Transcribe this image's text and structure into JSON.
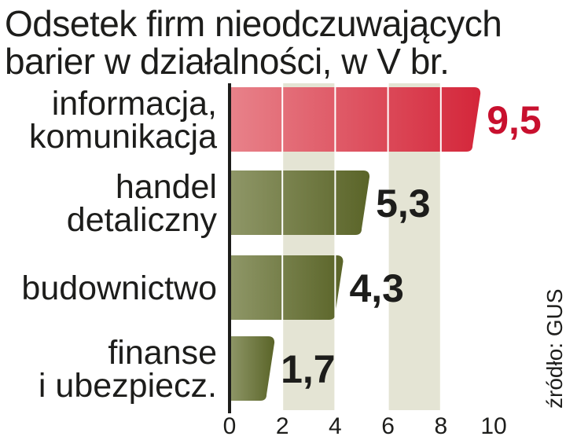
{
  "title_line1": "Odsetek firm nieodczuwających",
  "title_line2": "barier w działalności, w V br.",
  "source": "źródło: GUS",
  "colors": {
    "highlight": "#d4263a",
    "highlight_light": "#e8828a",
    "bar": "#5a6428",
    "bar_light": "#8f9768",
    "band": "#e4e4d4",
    "value_highlight": "#c8102e",
    "value_default": "#1d1d1b"
  },
  "chart_data": {
    "type": "bar",
    "orientation": "horizontal",
    "title": "Odsetek firm nieodczuwających barier w działalności, w V br.",
    "categories": [
      [
        "informacja,",
        "komunikacja"
      ],
      [
        "handel",
        "detaliczny"
      ],
      [
        "budownictwo"
      ],
      [
        "finanse",
        "i ubezpiecz."
      ]
    ],
    "values": [
      9.5,
      5.3,
      4.3,
      1.7
    ],
    "value_labels": [
      "9,5",
      "5,3",
      "4,3",
      "1,7"
    ],
    "highlight_index": 0,
    "xlim": [
      0,
      10
    ],
    "xticks": [
      0,
      2,
      4,
      6,
      8,
      10
    ],
    "grid": true
  }
}
